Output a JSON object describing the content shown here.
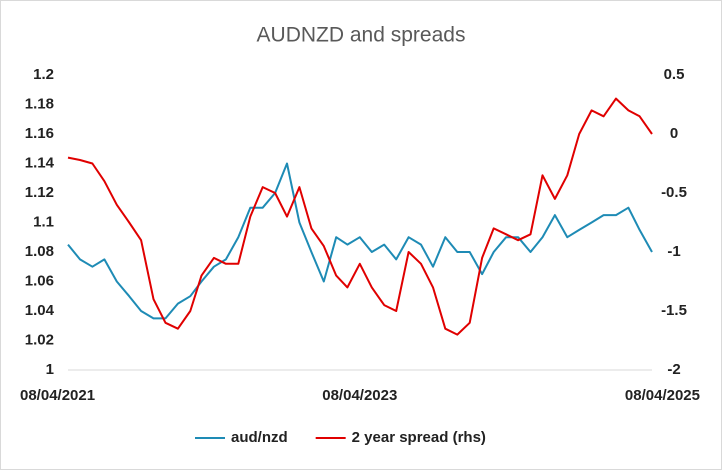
{
  "chart_data": {
    "type": "line",
    "title": "AUDNZD and spreads",
    "x": [
      "08/04/2021",
      "08/05/2021",
      "08/06/2021",
      "08/07/2021",
      "08/08/2021",
      "08/09/2021",
      "08/10/2021",
      "08/11/2021",
      "08/12/2021",
      "08/01/2022",
      "08/02/2022",
      "08/03/2022",
      "08/04/2022",
      "08/05/2022",
      "08/06/2022",
      "08/07/2022",
      "08/08/2022",
      "08/09/2022",
      "08/10/2022",
      "08/11/2022",
      "08/12/2022",
      "08/01/2023",
      "08/02/2023",
      "08/03/2023",
      "08/04/2023",
      "08/05/2023",
      "08/06/2023",
      "08/07/2023",
      "08/08/2023",
      "08/09/2023",
      "08/10/2023",
      "08/11/2023",
      "08/12/2023",
      "08/01/2024",
      "08/02/2024",
      "08/03/2024",
      "08/04/2024",
      "08/05/2024",
      "08/06/2024",
      "08/07/2024",
      "08/08/2024",
      "08/09/2024",
      "08/10/2024",
      "08/11/2024",
      "08/12/2024",
      "08/01/2025",
      "08/02/2025",
      "08/03/2025",
      "08/04/2025"
    ],
    "series": [
      {
        "name": "aud/nzd",
        "color": "#1e8bb5",
        "axis": "y",
        "values": [
          1.085,
          1.075,
          1.07,
          1.075,
          1.06,
          1.05,
          1.04,
          1.035,
          1.035,
          1.045,
          1.05,
          1.06,
          1.07,
          1.075,
          1.09,
          1.11,
          1.11,
          1.12,
          1.14,
          1.1,
          1.08,
          1.06,
          1.09,
          1.085,
          1.09,
          1.08,
          1.085,
          1.075,
          1.09,
          1.085,
          1.07,
          1.09,
          1.08,
          1.08,
          1.065,
          1.08,
          1.09,
          1.09,
          1.08,
          1.09,
          1.105,
          1.09,
          1.095,
          1.1,
          1.105,
          1.105,
          1.11,
          1.095,
          1.08
        ]
      },
      {
        "name": "2 year spread (rhs)",
        "color": "#e00000",
        "axis": "y2",
        "values": [
          -0.2,
          -0.22,
          -0.25,
          -0.4,
          -0.6,
          -0.75,
          -0.9,
          -1.4,
          -1.6,
          -1.65,
          -1.5,
          -1.2,
          -1.05,
          -1.1,
          -1.1,
          -0.7,
          -0.45,
          -0.5,
          -0.7,
          -0.45,
          -0.8,
          -0.95,
          -1.2,
          -1.3,
          -1.1,
          -1.3,
          -1.45,
          -1.5,
          -1.0,
          -1.1,
          -1.3,
          -1.65,
          -1.7,
          -1.6,
          -1.05,
          -0.8,
          -0.85,
          -0.9,
          -0.85,
          -0.35,
          -0.55,
          -0.35,
          0.0,
          0.2,
          0.15,
          0.3,
          0.2,
          0.15,
          0.0
        ]
      }
    ],
    "xticks": [
      "08/04/2021",
      "08/04/2023",
      "08/04/2025"
    ],
    "ylim": [
      1,
      1.2
    ],
    "yticks": [
      1,
      1.02,
      1.04,
      1.06,
      1.08,
      1.1,
      1.12,
      1.14,
      1.16,
      1.18,
      1.2
    ],
    "y2lim": [
      -2,
      0.5
    ],
    "y2ticks": [
      -2,
      -1.5,
      -1,
      -0.5,
      0,
      0.5
    ],
    "legend": "bottom"
  }
}
